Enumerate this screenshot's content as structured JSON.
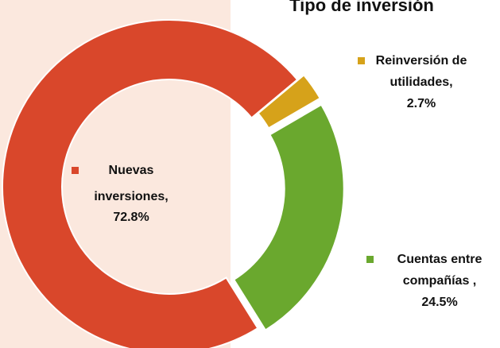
{
  "chart_data": {
    "type": "donut",
    "title": "Tipo de inversión",
    "categories": [
      "Nuevas inversiones,",
      "Reinversión de utilidades,",
      "Cuentas entre compañías ,"
    ],
    "values": [
      72.8,
      2.7,
      24.5
    ],
    "value_labels": [
      "72.8%",
      "2.7%",
      "24.5%"
    ],
    "colors": [
      "#d9472b",
      "#d6a21a",
      "#6aa82e"
    ]
  }
}
